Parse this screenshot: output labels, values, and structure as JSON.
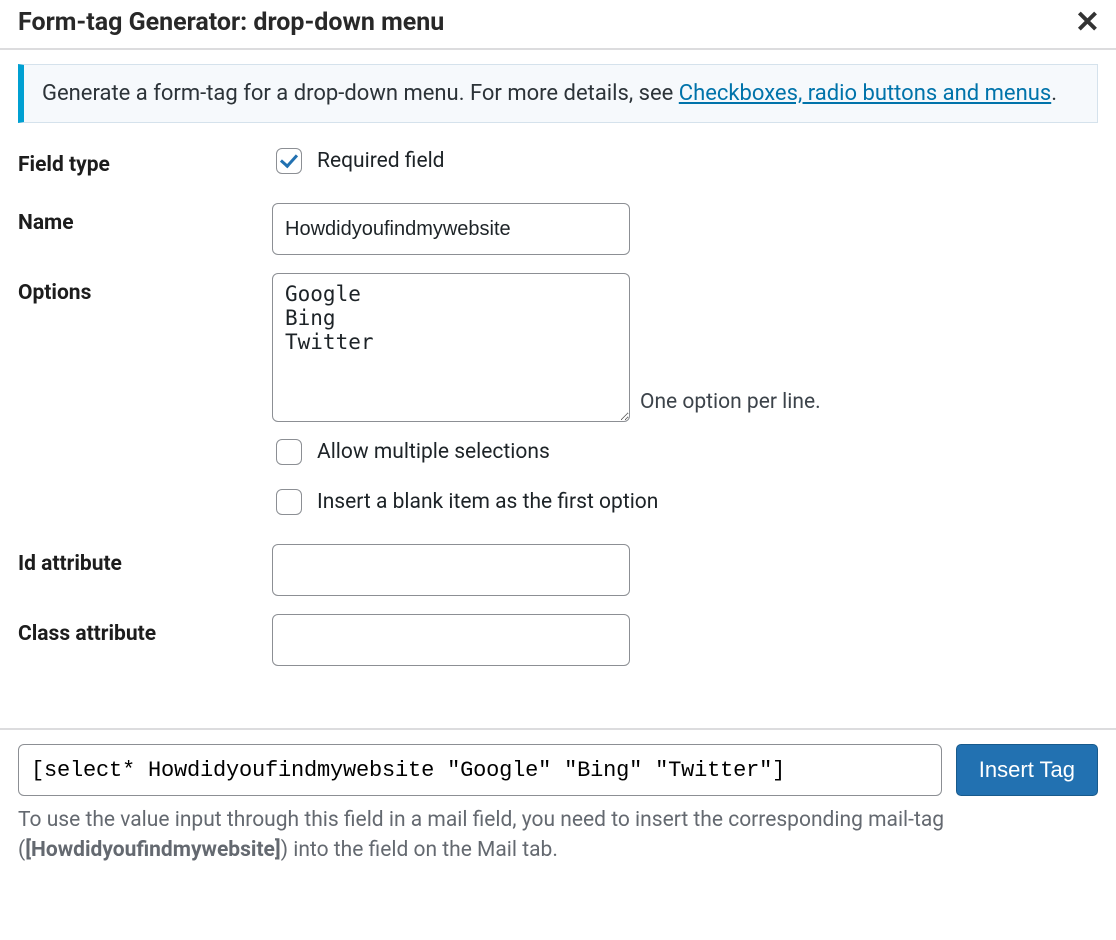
{
  "dialog": {
    "title": "Form-tag Generator: drop-down menu"
  },
  "info": {
    "text_before_link": "Generate a form-tag for a drop-down menu. For more details, see ",
    "link_text": "Checkboxes, radio buttons and menus",
    "text_after_link": "."
  },
  "labels": {
    "field_type": "Field type",
    "name": "Name",
    "options": "Options",
    "id_attribute": "Id attribute",
    "class_attribute": "Class attribute"
  },
  "fields": {
    "required_checked": true,
    "required_label": "Required field",
    "name_value": "Howdidyoufindmywebsite",
    "options_value": "Google\nBing\nTwitter",
    "options_hint": "One option per line.",
    "allow_multiple_checked": false,
    "allow_multiple_label": "Allow multiple selections",
    "blank_first_checked": false,
    "blank_first_label": "Insert a blank item as the first option",
    "id_value": "",
    "class_value": ""
  },
  "output": {
    "tag_value": "[select* Howdidyoufindmywebsite \"Google\" \"Bing\" \"Twitter\"]",
    "insert_button": "Insert Tag"
  },
  "note": {
    "before": "To use the value input through this field in a mail field, you need to insert the corresponding mail-tag (",
    "mailtag": "[Howdidyoufindmywebsite]",
    "after": ") into the field on the Mail tab."
  }
}
